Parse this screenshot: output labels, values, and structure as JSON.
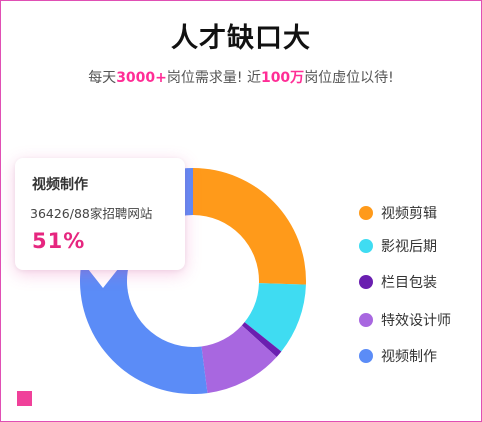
{
  "header": {
    "title": "人才缺口大",
    "subtitle": {
      "p1": "每天",
      "h1": "3000+",
      "p2": "岗位需求量!  近",
      "h2": "100万",
      "p3": "岗位虚位以待!"
    }
  },
  "tooltip": {
    "title": "视频制作",
    "detail": "36426/88家招聘网站",
    "percent": "51%"
  },
  "chart_data": {
    "type": "pie",
    "donut": true,
    "categories": [
      "视频剪辑",
      "影视后期",
      "栏目包装",
      "特效设计师",
      "视频制作"
    ],
    "values": [
      25,
      10,
      1,
      11,
      51
    ],
    "unit": "%",
    "legend_position": "right"
  },
  "colors": {
    "accent": "#ff2d96",
    "series": [
      "#ff9a1a",
      "#3fdcf2",
      "#6a1fb0",
      "#a867e0",
      "#5b8cf7"
    ]
  }
}
